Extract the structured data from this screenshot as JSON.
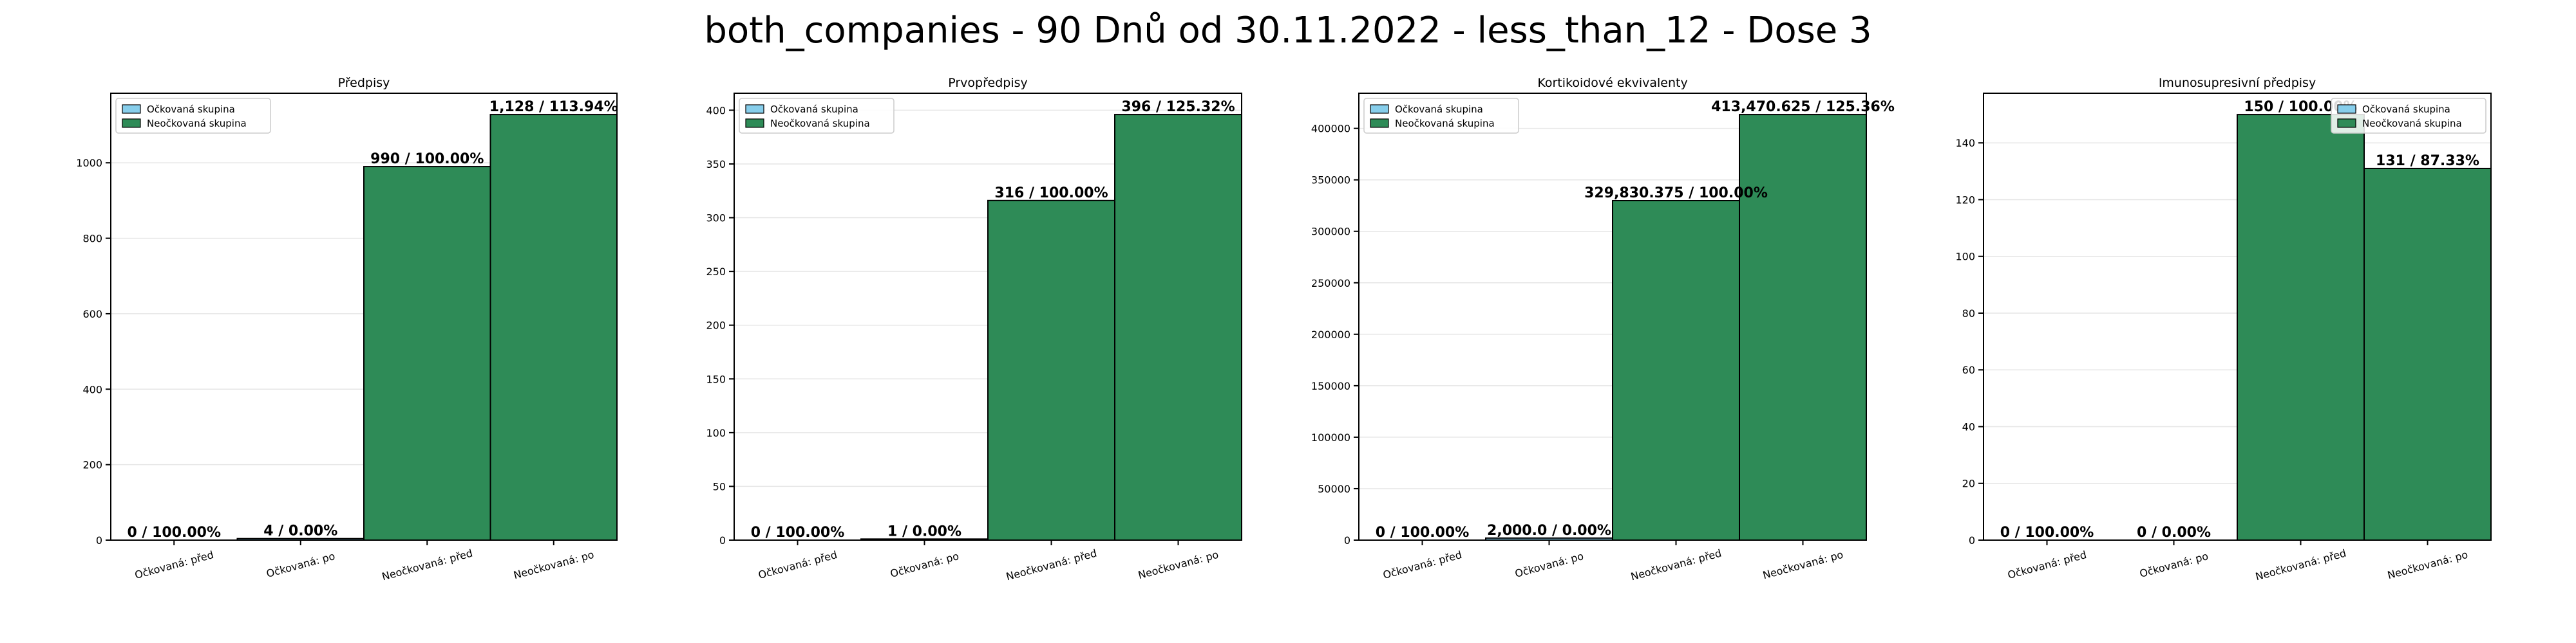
{
  "suptitle": "both_companies - 90 Dnů od 30.11.2022 - less_than_12 - Dose 3",
  "colors": {
    "vaccinated": "#87ceeb",
    "unvaccinated": "#2e8b57",
    "edge": "#000000",
    "grid": "#e6e6e6"
  },
  "legend": {
    "items": [
      "Očkovaná skupina",
      "Neočkovaná skupina"
    ]
  },
  "chart_data": [
    {
      "type": "bar",
      "title": "Předpisy",
      "categories": [
        "Očkovaná: před",
        "Očkovaná: po",
        "Neočkovaná: před",
        "Neočkovaná: po"
      ],
      "groups": [
        "vaccinated",
        "vaccinated",
        "unvaccinated",
        "unvaccinated"
      ],
      "values": [
        0,
        4,
        990,
        1128
      ],
      "labels": [
        "0 / 100.00%",
        "4 / 0.00%",
        "990 / 100.00%",
        "1,128 / 113.94%"
      ],
      "ylim": [
        0,
        1184.4
      ],
      "yticks": [
        0,
        200,
        400,
        600,
        800,
        1000
      ],
      "ytick_labels": [
        "0",
        "200",
        "400",
        "600",
        "800",
        "1000"
      ],
      "legend_position": "upper-left",
      "grid": true
    },
    {
      "type": "bar",
      "title": "Prvopředpisy",
      "categories": [
        "Očkovaná: před",
        "Očkovaná: po",
        "Neočkovaná: před",
        "Neočkovaná: po"
      ],
      "groups": [
        "vaccinated",
        "vaccinated",
        "unvaccinated",
        "unvaccinated"
      ],
      "values": [
        0,
        1,
        316,
        396
      ],
      "labels": [
        "0 / 100.00%",
        "1 / 0.00%",
        "316 / 100.00%",
        "396 / 125.32%"
      ],
      "ylim": [
        0,
        415.8
      ],
      "yticks": [
        0,
        50,
        100,
        150,
        200,
        250,
        300,
        350,
        400
      ],
      "ytick_labels": [
        "0",
        "50",
        "100",
        "150",
        "200",
        "250",
        "300",
        "350",
        "400"
      ],
      "legend_position": "upper-left",
      "grid": true
    },
    {
      "type": "bar",
      "title": "Kortikoidové ekvivalenty",
      "categories": [
        "Očkovaná: před",
        "Očkovaná: po",
        "Neočkovaná: před",
        "Neočkovaná: po"
      ],
      "groups": [
        "vaccinated",
        "vaccinated",
        "unvaccinated",
        "unvaccinated"
      ],
      "values": [
        0,
        2000,
        329830.375,
        413470.625
      ],
      "labels": [
        "0 / 100.00%",
        "2,000.0 / 0.00%",
        "329,830.375 / 100.00%",
        "413,470.625 / 125.36%"
      ],
      "ylim": [
        0,
        434144
      ],
      "yticks": [
        0,
        50000,
        100000,
        150000,
        200000,
        250000,
        300000,
        350000,
        400000
      ],
      "ytick_labels": [
        "0",
        "50000",
        "100000",
        "150000",
        "200000",
        "250000",
        "300000",
        "350000",
        "400000"
      ],
      "legend_position": "upper-left",
      "grid": true
    },
    {
      "type": "bar",
      "title": "Imunosupresivní předpisy",
      "categories": [
        "Očkovaná: před",
        "Očkovaná: po",
        "Neočkovaná: před",
        "Neočkovaná: po"
      ],
      "groups": [
        "vaccinated",
        "vaccinated",
        "unvaccinated",
        "unvaccinated"
      ],
      "values": [
        0,
        0,
        150,
        131
      ],
      "labels": [
        "0 / 100.00%",
        "0 / 0.00%",
        "150 / 100.00%",
        "131 / 87.33%"
      ],
      "ylim": [
        0,
        157.5
      ],
      "yticks": [
        0,
        20,
        40,
        60,
        80,
        100,
        120,
        140
      ],
      "ytick_labels": [
        "0",
        "20",
        "40",
        "60",
        "80",
        "100",
        "120",
        "140"
      ],
      "legend_position": "upper-right",
      "grid": true
    }
  ]
}
